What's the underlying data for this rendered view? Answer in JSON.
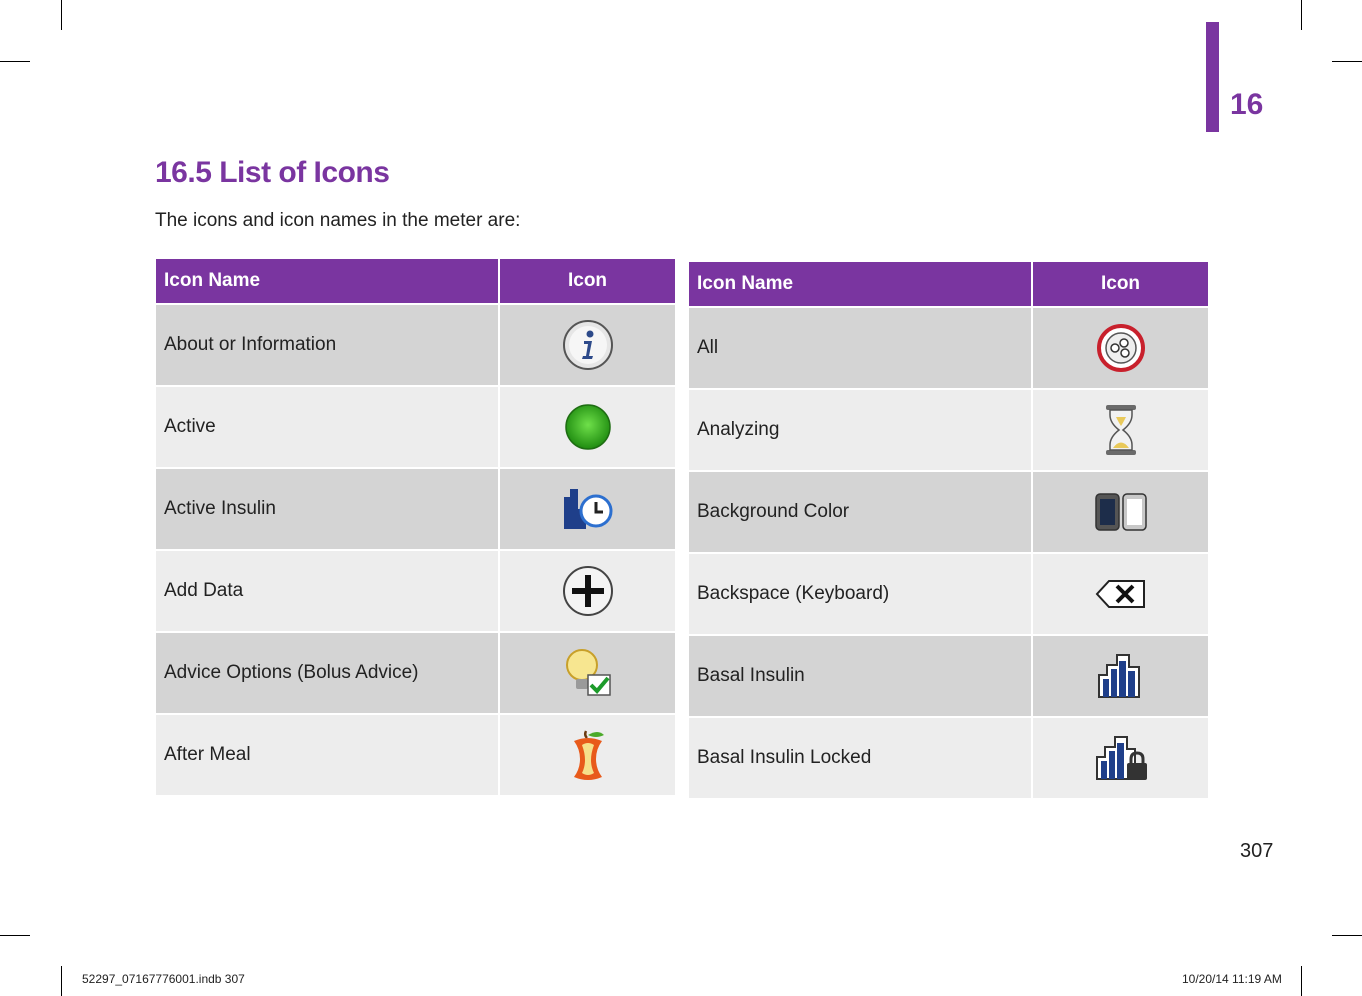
{
  "header": {
    "chapter_number": "16"
  },
  "section": {
    "title": "16.5 List of Icons",
    "intro": "The icons and icon names in the meter are:"
  },
  "table_left": {
    "col_name": "Icon Name",
    "col_icon": "Icon",
    "rows": [
      {
        "name": "About or Information",
        "icon": "info-icon"
      },
      {
        "name": "Active",
        "icon": "green-circle-icon"
      },
      {
        "name": "Active Insulin",
        "icon": "active-insulin-clock-icon"
      },
      {
        "name": "Add Data",
        "icon": "plus-icon"
      },
      {
        "name": "Advice Options (Bolus Advice)",
        "icon": "lightbulb-check-icon"
      },
      {
        "name": "After Meal",
        "icon": "apple-core-icon"
      }
    ]
  },
  "table_right": {
    "col_name": "Icon Name",
    "col_icon": "Icon",
    "rows": [
      {
        "name": "All",
        "icon": "all-circles-icon"
      },
      {
        "name": "Analyzing",
        "icon": "hourglass-icon"
      },
      {
        "name": "Background Color",
        "icon": "device-screens-icon"
      },
      {
        "name": "Backspace (Keyboard)",
        "icon": "backspace-icon"
      },
      {
        "name": "Basal Insulin",
        "icon": "basal-bars-icon"
      },
      {
        "name": "Basal Insulin Locked",
        "icon": "basal-bars-lock-icon"
      }
    ]
  },
  "page_number": "307",
  "footer": {
    "left": "52297_07167776001.indb   307",
    "right": "10/20/14   11:19 AM"
  },
  "colors": {
    "accent": "#7a35a0"
  }
}
